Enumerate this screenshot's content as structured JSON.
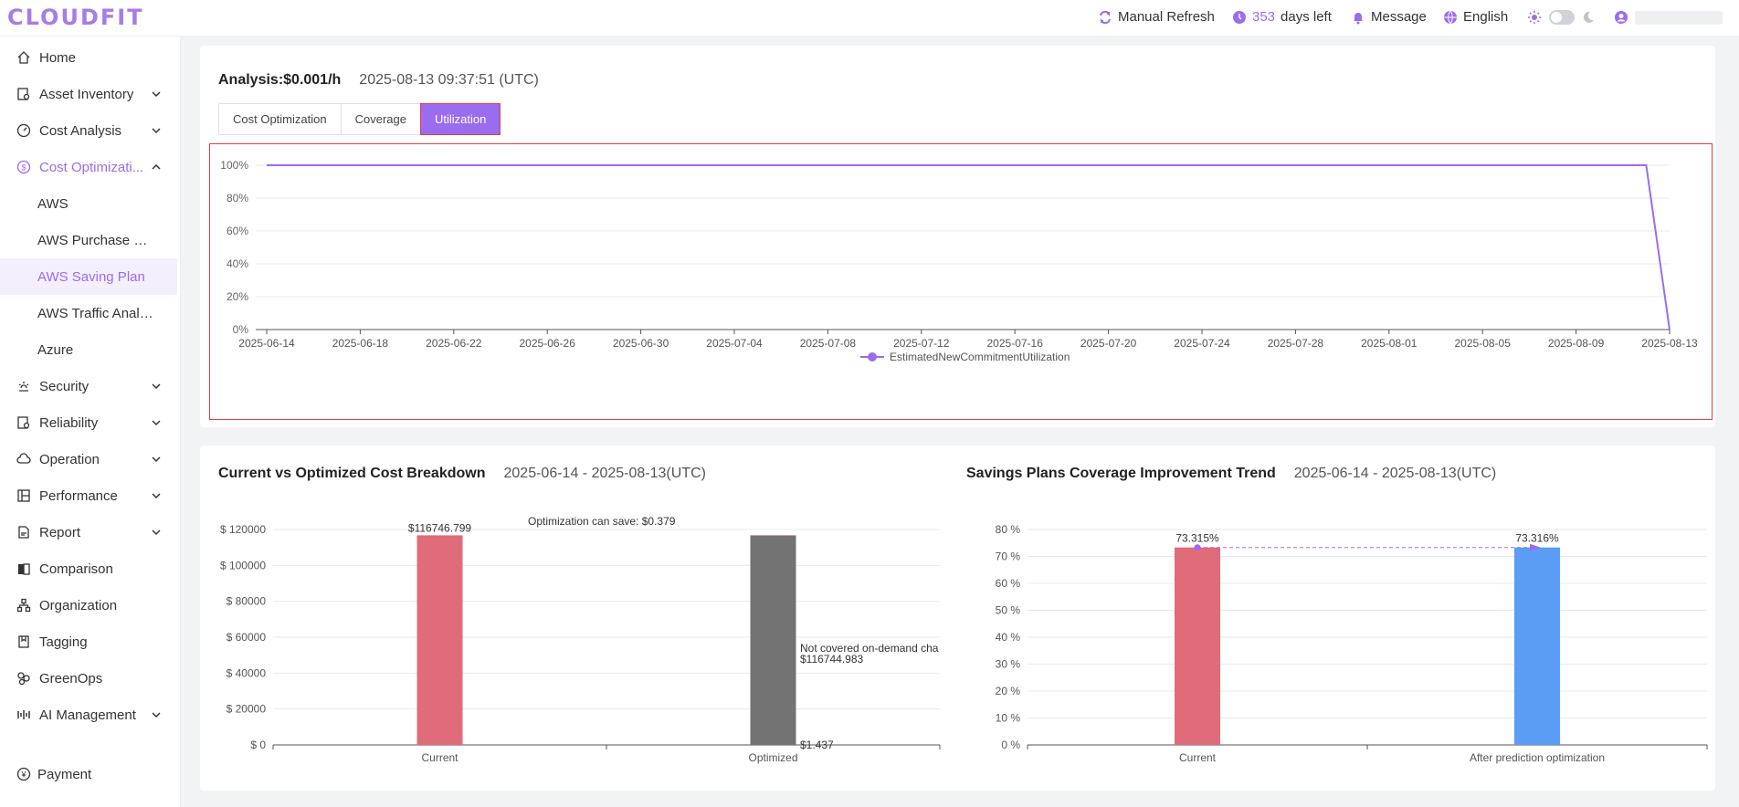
{
  "app": {
    "logo": "CLOUDFIT"
  },
  "topbar": {
    "refresh_label": "Manual Refresh",
    "days_count": "353",
    "days_label": "days left",
    "message_label": "Message",
    "language_label": "English"
  },
  "sidebar": {
    "items": [
      {
        "label": "Home",
        "icon": "home-icon"
      },
      {
        "label": "Asset Inventory",
        "icon": "inventory-icon"
      },
      {
        "label": "Cost Analysis",
        "icon": "gauge-icon"
      },
      {
        "label": "Cost Optimizati...",
        "icon": "dollar-icon"
      },
      {
        "label": "AWS"
      },
      {
        "label": "AWS Purchase Re..."
      },
      {
        "label": "AWS Saving Plan"
      },
      {
        "label": "AWS Traffic Analy..."
      },
      {
        "label": "Azure"
      },
      {
        "label": "Security",
        "icon": "shield-icon"
      },
      {
        "label": "Reliability",
        "icon": "reliability-icon"
      },
      {
        "label": "Operation",
        "icon": "cloud-icon"
      },
      {
        "label": "Performance",
        "icon": "performance-icon"
      },
      {
        "label": "Report",
        "icon": "report-icon"
      },
      {
        "label": "Comparison",
        "icon": "comparison-icon"
      },
      {
        "label": "Organization",
        "icon": "organization-icon"
      },
      {
        "label": "Tagging",
        "icon": "tag-icon"
      },
      {
        "label": "GreenOps",
        "icon": "leaf-icon"
      },
      {
        "label": "AI Management",
        "icon": "ai-icon"
      },
      {
        "label": "Payment",
        "icon": "payment-icon"
      }
    ]
  },
  "analysis": {
    "title": "Analysis:$0.001/h",
    "timestamp": "2025-08-13 09:37:51 (UTC)",
    "tabs": [
      "Cost Optimization",
      "Coverage",
      "Utilization"
    ],
    "active_tab": "Utilization"
  },
  "breakdown": {
    "title": "Current vs Optimized Cost Breakdown",
    "range": "2025-06-14 - 2025-08-13(UTC)"
  },
  "coverage": {
    "title": "Savings Plans Coverage Improvement Trend",
    "range": "2025-06-14 - 2025-08-13(UTC)"
  },
  "chart_data": [
    {
      "type": "line",
      "x": [
        "2025-06-14",
        "2025-06-18",
        "2025-06-22",
        "2025-06-26",
        "2025-06-30",
        "2025-07-04",
        "2025-07-08",
        "2025-07-12",
        "2025-07-16",
        "2025-07-20",
        "2025-07-24",
        "2025-07-28",
        "2025-08-01",
        "2025-08-05",
        "2025-08-09",
        "2025-08-13"
      ],
      "yticks": [
        "0%",
        "20%",
        "40%",
        "60%",
        "80%",
        "100%"
      ],
      "ylim": [
        0,
        100
      ],
      "series": [
        {
          "name": "EstimatedNewCommitmentUtilization",
          "color": "#9b6cf0",
          "points": [
            [
              "2025-06-14",
              100
            ],
            [
              "2025-08-12",
              100
            ],
            [
              "2025-08-13",
              0
            ]
          ]
        }
      ],
      "legend": "bottom-center"
    },
    {
      "type": "bar",
      "categories": [
        "Current",
        "Optimized"
      ],
      "yticks": [
        "$ 0",
        "$ 20000",
        "$ 40000",
        "$ 60000",
        "$ 80000",
        "$ 100000",
        "$ 120000"
      ],
      "ylim": [
        0,
        120000
      ],
      "series": [
        {
          "category": "Current",
          "value": 116746.799,
          "label": "$116746.799",
          "color": "#e06c7a"
        },
        {
          "category": "Optimized",
          "value": 116744.983,
          "color": "#737373"
        },
        {
          "category": "Optimized",
          "value": 1.437,
          "color": "#e06c7a"
        }
      ],
      "annotations": {
        "save": "Optimization can save: $0.379",
        "not_covered_line1": "Not covered on-demand cha",
        "not_covered_line2": "$116744.983",
        "covered": "$1.437"
      }
    },
    {
      "type": "bar",
      "categories": [
        "Current",
        "After prediction optimization"
      ],
      "yticks": [
        "0 %",
        "10 %",
        "20 %",
        "30 %",
        "40 %",
        "50 %",
        "60 %",
        "70 %",
        "80 %"
      ],
      "ylim": [
        0,
        80
      ],
      "values": [
        73.315,
        73.316
      ],
      "labels": [
        "73.315%",
        "73.316%"
      ],
      "colors": [
        "#e06c7a",
        "#5b9cf5"
      ]
    }
  ]
}
